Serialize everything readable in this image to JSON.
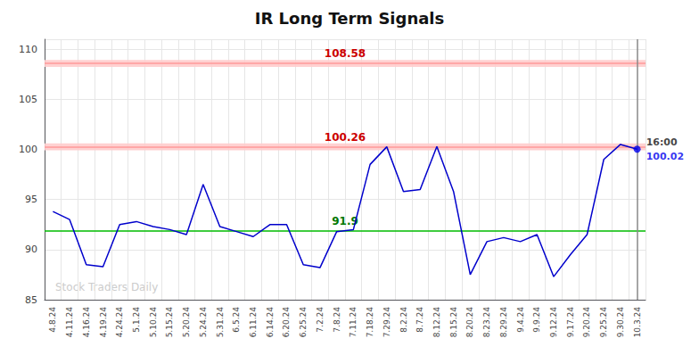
{
  "chart_data": {
    "type": "line",
    "title": "IR Long Term Signals",
    "categories": [
      "4.8.24",
      "4.11.24",
      "4.16.24",
      "4.19.24",
      "4.24.24",
      "5.1.24",
      "5.10.24",
      "5.15.24",
      "5.20.24",
      "5.24.24",
      "5.31.24",
      "6.5.24",
      "6.11.24",
      "6.14.24",
      "6.20.24",
      "6.25.24",
      "7.2.24",
      "7.8.24",
      "7.11.24",
      "7.18.24",
      "7.29.24",
      "8.2.24",
      "8.7.24",
      "8.12.24",
      "8.15.24",
      "8.20.24",
      "8.23.24",
      "8.29.24",
      "9.4.24",
      "9.9.24",
      "9.12.24",
      "9.17.24",
      "9.20.24",
      "9.25.24",
      "9.30.24",
      "10.3.24"
    ],
    "values": [
      93.8,
      93.0,
      88.5,
      88.3,
      92.5,
      92.8,
      92.3,
      92.0,
      91.5,
      96.5,
      92.3,
      91.8,
      91.3,
      92.5,
      92.5,
      88.5,
      88.2,
      91.8,
      92.0,
      98.5,
      100.26,
      95.8,
      96.0,
      100.3,
      95.8,
      87.5,
      90.8,
      91.2,
      90.8,
      91.5,
      87.3,
      89.5,
      91.5,
      99.0,
      100.5,
      100.02
    ],
    "color": "#0000cc",
    "ylim": [
      85,
      111
    ],
    "yticks": [
      85,
      90,
      95,
      100,
      105,
      110
    ],
    "grid": true,
    "reference_lines": [
      {
        "value": 108.58,
        "label": "108.58",
        "color": "#ff9999",
        "label_color": "#cc0000",
        "band": [
          108.23,
          108.93
        ],
        "band_color": "#ffcccc"
      },
      {
        "value": 100.26,
        "label": "100.26",
        "color": "#ff9999",
        "label_color": "#cc0000",
        "band": [
          99.91,
          100.61
        ],
        "band_color": "#ffcccc"
      },
      {
        "value": 91.9,
        "label": "91.9",
        "color": "#00bb00",
        "label_color": "#007700"
      }
    ],
    "final_point": {
      "value": 100.02,
      "label": "100.02",
      "time": "16:00",
      "color": "#0000ee",
      "line_color": "#888888"
    },
    "watermark": "Stock Traders Daily"
  }
}
